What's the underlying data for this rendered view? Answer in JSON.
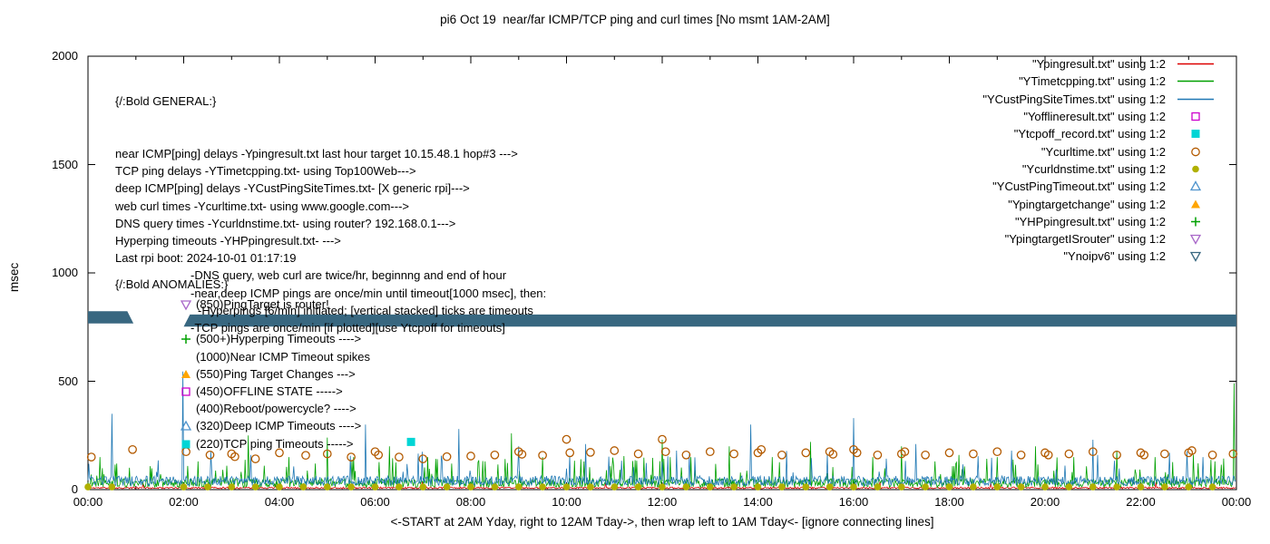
{
  "chart_data": {
    "type": "line",
    "title": "pi6 Oct 19  near/far ICMP/TCP ping and curl times [No msmt 1AM-2AM]",
    "xlabel": "<-START at 2AM Yday, right to 12AM Tday->, then wrap left to 1AM Tday<- [ignore connecting lines]",
    "ylabel": "msec",
    "ylim": [
      0,
      2000
    ],
    "yticks": [
      0,
      500,
      1000,
      1500,
      2000
    ],
    "xtick_hours": [
      0,
      2,
      4,
      6,
      8,
      10,
      12,
      14,
      16,
      18,
      20,
      22,
      24
    ],
    "xtick_labels": [
      "00:00",
      "02:00",
      "04:00",
      "06:00",
      "08:00",
      "10:00",
      "12:00",
      "14:00",
      "16:00",
      "18:00",
      "20:00",
      "22:00",
      "00:00"
    ],
    "minor_xtick_hours": [
      1,
      3,
      5,
      7,
      9,
      11,
      13,
      15,
      17,
      19,
      21,
      23
    ],
    "legend": [
      {
        "label": "\"Ypingresult.txt\" using 1:2",
        "color": "#dd0000",
        "sample": "line"
      },
      {
        "label": "\"YTimetcpping.txt\" using 1:2",
        "color": "#00a000",
        "sample": "line"
      },
      {
        "label": "\"YCustPingSiteTimes.txt\" using 1:2",
        "color": "#1f78b4",
        "sample": "line"
      },
      {
        "label": "\"Yofflineresult.txt\" using 1:2",
        "color": "#cc00cc",
        "sample": "square-open"
      },
      {
        "label": "\"Ytcpoff_record.txt\" using 1:2",
        "color": "#00d5d5",
        "sample": "square-filled"
      },
      {
        "label": "\"Ycurltime.txt\" using 1:2",
        "color": "#b35a00",
        "sample": "circle-open"
      },
      {
        "label": "\"Ycurldnstime.txt\" using 1:2",
        "color": "#b0b000",
        "sample": "circle-filled"
      },
      {
        "label": "\"YCustPingTimeout.txt\" using 1:2",
        "color": "#4f94cd",
        "sample": "tri-up-open"
      },
      {
        "label": "\"Ypingtargetchange\" using 1:2",
        "color": "#ffa500",
        "sample": "tri-up-filled"
      },
      {
        "label": "\"YHPpingresult.txt\" using 1:2",
        "color": "#00a000",
        "sample": "plus"
      },
      {
        "label": "\"YpingtargetISrouter\" using 1:2",
        "color": "#a968c9",
        "sample": "tri-down-open"
      },
      {
        "label": "\"Ynoipv6\" using 1:2",
        "color": "#386780",
        "sample": "tri-down-open"
      }
    ],
    "general": {
      "heading": "{/:Bold GENERAL:}",
      "lines": [
        {
          "text": "near ICMP[ping] delays -Ypingresult.txt last hour target 10.15.48.1 hop#3 --->",
          "indent": 0
        },
        {
          "text": "TCP ping delays -YTimetcpping.txt- using Top100Web--->",
          "indent": 0
        },
        {
          "text": "deep ICMP[ping] delays -YCustPingSiteTimes.txt- [X generic rpi]--->",
          "indent": 0
        },
        {
          "text": "web curl times -Ycurltime.txt- using www.google.com--->",
          "indent": 0
        },
        {
          "text": "DNS query times -Ycurldnstime.txt- using router? 192.168.0.1--->",
          "indent": 0
        },
        {
          "text": "Hyperping timeouts -YHPpingresult.txt- --->",
          "indent": 0
        },
        {
          "text": "Last rpi boot: 2024-10-01 01:17:19",
          "indent": 0
        },
        {
          "text": "-DNS query, web curl are twice/hr, beginnng and end of hour",
          "indent": 1
        },
        {
          "text": "-near,deep ICMP pings are once/min until timeout[1000 msec], then:",
          "indent": 1
        },
        {
          "text": "-Hyperpings [6/min] initiated; [vertical stacked] ticks are timeouts",
          "indent": 2
        },
        {
          "text": "-TCP pings are once/min [if plotted][use Ytcpoff for timeouts]",
          "indent": 1
        }
      ]
    },
    "anomalies": {
      "heading": "{/:Bold ANOMALIES:}",
      "items": [
        {
          "marker": "tri-down-open",
          "color": "#a968c9",
          "text": "(850)PingTarget is router!"
        },
        {
          "marker": "",
          "color": "",
          "text": ""
        },
        {
          "marker": "plus",
          "color": "#00a000",
          "text": "(500+)Hyperping Timeouts ---->"
        },
        {
          "marker": "",
          "color": "",
          "text": "(1000)Near ICMP Timeout spikes"
        },
        {
          "marker": "tri-up-filled",
          "color": "#ffa500",
          "text": "(550)Ping Target Changes --->"
        },
        {
          "marker": "square-open",
          "color": "#cc00cc",
          "text": "(450)OFFLINE STATE ----->"
        },
        {
          "marker": "",
          "color": "",
          "text": "(400)Reboot/powercycle? ---->"
        },
        {
          "marker": "tri-up-open",
          "color": "#4f94cd",
          "text": "(320)Deep ICMP Timeouts ---->"
        },
        {
          "marker": "square-filled",
          "color": "#00d5d5",
          "text": "(220)TCP ping Timeouts ----->"
        }
      ]
    },
    "band": {
      "value_msec": 780,
      "half_height_msec": 28,
      "color": "#386780",
      "gap_hours": [
        0.95,
        2.0
      ]
    },
    "series": {
      "ping_near": {
        "name": "Ypingresult.txt",
        "color": "#dd0000",
        "style": "line",
        "base": 4,
        "jitter": 8,
        "spike_prob": 0.002,
        "spike_range": [
          20,
          40
        ],
        "spikes": []
      },
      "tcp_ping": {
        "name": "YTimetcpping.txt",
        "color": "#00a000",
        "style": "line",
        "base": 10,
        "jitter": 40,
        "spike_prob": 0.05,
        "spike_range": [
          60,
          150
        ],
        "spikes": [
          [
            0.25,
            150
          ],
          [
            0.6,
            120
          ],
          [
            2.3,
            130
          ],
          [
            2.9,
            110
          ],
          [
            3.35,
            250
          ],
          [
            4.2,
            150
          ],
          [
            4.75,
            120
          ],
          [
            5.0,
            240
          ],
          [
            5.55,
            150
          ],
          [
            6.3,
            200
          ],
          [
            7.1,
            150
          ],
          [
            7.6,
            120
          ],
          [
            8.3,
            130
          ],
          [
            8.85,
            260
          ],
          [
            9.5,
            150
          ],
          [
            10.3,
            140
          ],
          [
            11.2,
            155
          ],
          [
            12.0,
            230
          ],
          [
            12.6,
            150
          ],
          [
            13.4,
            200
          ],
          [
            14.3,
            150
          ],
          [
            15.1,
            220
          ],
          [
            16.4,
            150
          ],
          [
            17.0,
            200
          ],
          [
            17.7,
            130
          ],
          [
            18.2,
            160
          ],
          [
            19.0,
            150
          ],
          [
            19.8,
            200
          ],
          [
            20.6,
            150
          ],
          [
            21.5,
            180
          ],
          [
            22.3,
            150
          ],
          [
            23.1,
            160
          ],
          [
            23.55,
            130
          ],
          [
            23.95,
            490
          ]
        ]
      },
      "deep_ping": {
        "name": "YCustPingSiteTimes.txt",
        "color": "#1f78b4",
        "style": "line",
        "base": 18,
        "jitter": 45,
        "spike_prob": 0.03,
        "spike_range": [
          70,
          180
        ],
        "spikes": [
          [
            0.5,
            350
          ],
          [
            1.98,
            545
          ],
          [
            3.4,
            160
          ],
          [
            5.8,
            300
          ],
          [
            7.75,
            280
          ],
          [
            9.0,
            200
          ],
          [
            10.4,
            210
          ],
          [
            12.3,
            180
          ],
          [
            13.85,
            300
          ],
          [
            16.0,
            330
          ],
          [
            17.3,
            210
          ],
          [
            19.3,
            180
          ],
          [
            21.0,
            230
          ],
          [
            22.6,
            170
          ],
          [
            23.3,
            150
          ]
        ]
      },
      "curl_times": {
        "name": "Ycurltime.txt",
        "color": "#b35a00",
        "style": "circle-open",
        "points": [
          [
            0.07,
            150
          ],
          [
            0.93,
            185
          ],
          [
            2.05,
            175
          ],
          [
            2.55,
            160
          ],
          [
            3.0,
            165
          ],
          [
            3.07,
            152
          ],
          [
            3.5,
            142
          ],
          [
            4.0,
            170
          ],
          [
            4.55,
            158
          ],
          [
            5.0,
            165
          ],
          [
            5.5,
            150
          ],
          [
            6.0,
            175
          ],
          [
            6.07,
            160
          ],
          [
            6.5,
            150
          ],
          [
            7.0,
            142
          ],
          [
            7.5,
            152
          ],
          [
            8.0,
            155
          ],
          [
            8.5,
            160
          ],
          [
            9.0,
            175
          ],
          [
            9.07,
            163
          ],
          [
            9.5,
            158
          ],
          [
            10.0,
            232
          ],
          [
            10.07,
            170
          ],
          [
            10.5,
            172
          ],
          [
            11.0,
            180
          ],
          [
            11.5,
            165
          ],
          [
            12.0,
            232
          ],
          [
            12.07,
            175
          ],
          [
            12.5,
            160
          ],
          [
            13.0,
            175
          ],
          [
            13.5,
            165
          ],
          [
            14.0,
            170
          ],
          [
            14.07,
            185
          ],
          [
            14.5,
            160
          ],
          [
            15.0,
            170
          ],
          [
            15.5,
            175
          ],
          [
            15.57,
            163
          ],
          [
            16.0,
            185
          ],
          [
            16.07,
            170
          ],
          [
            16.5,
            160
          ],
          [
            17.0,
            165
          ],
          [
            17.07,
            175
          ],
          [
            17.5,
            160
          ],
          [
            18.0,
            170
          ],
          [
            18.5,
            165
          ],
          [
            19.0,
            175
          ],
          [
            19.5,
            160
          ],
          [
            20.0,
            170
          ],
          [
            20.07,
            160
          ],
          [
            20.5,
            165
          ],
          [
            21.0,
            175
          ],
          [
            21.5,
            160
          ],
          [
            22.0,
            170
          ],
          [
            22.07,
            160
          ],
          [
            22.5,
            165
          ],
          [
            23.0,
            170
          ],
          [
            23.07,
            180
          ],
          [
            23.5,
            160
          ],
          [
            23.93,
            165
          ]
        ]
      },
      "dns_times": {
        "name": "Ycurldnstime.txt",
        "color": "#b0b000",
        "style": "circle-filled",
        "y": 12,
        "start_hour": 0,
        "end_hour": 23.5,
        "step_hours": 0.5,
        "skip_hours": [
          1.0,
          1.5
        ]
      },
      "tcp_timeouts": {
        "name": "Ytcpoff_record.txt",
        "color": "#00d5d5",
        "style": "square-filled",
        "points": [
          [
            6.75,
            220
          ]
        ]
      }
    }
  }
}
